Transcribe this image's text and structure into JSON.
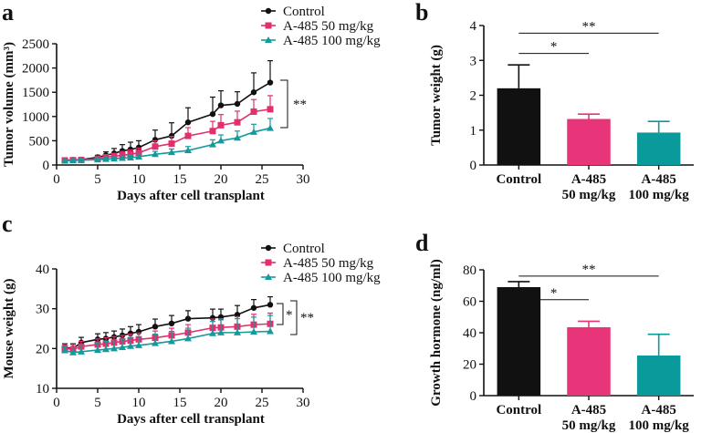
{
  "chart_data": [
    {
      "panel": "a",
      "type": "line",
      "title": "",
      "xlabel": "Days after cell transplant",
      "ylabel": "Tumor volume (mm³)",
      "xlim": [
        0,
        30
      ],
      "ylim": [
        0,
        2500
      ],
      "xticks": [
        0,
        5,
        10,
        15,
        20,
        25,
        30
      ],
      "yticks": [
        0,
        500,
        1000,
        1500,
        2000,
        2500
      ],
      "legend_position": "top-right",
      "series": [
        {
          "name": "Control",
          "color": "#111111",
          "marker": "circle",
          "x": [
            1,
            2,
            3,
            5,
            6,
            7,
            8,
            9,
            10,
            12,
            14,
            16,
            19,
            20,
            22,
            24,
            26
          ],
          "y": [
            100,
            105,
            110,
            160,
            200,
            240,
            290,
            320,
            360,
            520,
            600,
            880,
            1050,
            1230,
            1260,
            1500,
            1700
          ],
          "err": [
            20,
            20,
            25,
            40,
            70,
            100,
            130,
            150,
            140,
            200,
            270,
            300,
            350,
            300,
            250,
            400,
            450
          ]
        },
        {
          "name": "A-485 50 mg/kg",
          "color": "#e0306e",
          "marker": "square",
          "x": [
            1,
            2,
            3,
            5,
            6,
            7,
            8,
            9,
            10,
            12,
            14,
            16,
            19,
            20,
            22,
            24,
            26
          ],
          "y": [
            95,
            100,
            105,
            130,
            160,
            180,
            200,
            220,
            250,
            380,
            440,
            600,
            700,
            820,
            880,
            1100,
            1150
          ],
          "err": [
            15,
            15,
            20,
            30,
            50,
            60,
            80,
            90,
            100,
            120,
            150,
            170,
            200,
            220,
            230,
            250,
            280
          ]
        },
        {
          "name": "A-485 100 mg/kg",
          "color": "#159a9c",
          "marker": "triangle",
          "x": [
            1,
            2,
            3,
            5,
            6,
            7,
            8,
            9,
            10,
            12,
            14,
            16,
            19,
            20,
            22,
            24,
            26
          ],
          "y": [
            90,
            95,
            100,
            110,
            120,
            130,
            140,
            150,
            170,
            220,
            260,
            300,
            420,
            500,
            560,
            680,
            760
          ],
          "err": [
            15,
            15,
            20,
            20,
            30,
            35,
            40,
            45,
            50,
            60,
            70,
            80,
            100,
            120,
            140,
            160,
            200
          ]
        }
      ],
      "significance": [
        {
          "between": "Control vs A-485 100 mg/kg",
          "label": "**"
        }
      ]
    },
    {
      "panel": "b",
      "type": "bar",
      "title": "",
      "xlabel": "",
      "ylabel": "Tumor weight (g)",
      "ylim": [
        0,
        4
      ],
      "yticks": [
        0,
        1,
        2,
        3,
        4
      ],
      "categories": [
        [
          "Control"
        ],
        [
          "A-485",
          "50 mg/kg"
        ],
        [
          "A-485",
          "100 mg/kg"
        ]
      ],
      "values": [
        2.2,
        1.32,
        0.93
      ],
      "errors": [
        0.67,
        0.14,
        0.32
      ],
      "colors": [
        "#111111",
        "#e8357a",
        "#0a9a9c"
      ],
      "significance": [
        {
          "from": 0,
          "to": 1,
          "label": "*",
          "level": 3.2
        },
        {
          "from": 0,
          "to": 2,
          "label": "**",
          "level": 3.78
        }
      ]
    },
    {
      "panel": "c",
      "type": "line",
      "title": "",
      "xlabel": "Days after cell transplant",
      "ylabel": "Mouse weight (g)",
      "xlim": [
        0,
        30
      ],
      "ylim": [
        10,
        40
      ],
      "xticks": [
        0,
        5,
        10,
        15,
        20,
        25,
        30
      ],
      "yticks": [
        10,
        20,
        30,
        40
      ],
      "legend_position": "top-right",
      "series": [
        {
          "name": "Control",
          "color": "#111111",
          "marker": "circle",
          "x": [
            1,
            2,
            3,
            5,
            6,
            7,
            8,
            9,
            10,
            12,
            14,
            16,
            19,
            20,
            22,
            24,
            26
          ],
          "y": [
            20.2,
            20.0,
            21.5,
            22.3,
            22.5,
            22.9,
            23.3,
            23.8,
            24.2,
            25.5,
            26.3,
            27.5,
            27.7,
            27.9,
            28.5,
            30.2,
            31.0
          ],
          "err": [
            1.0,
            1.2,
            1.3,
            1.4,
            1.5,
            1.5,
            1.6,
            1.7,
            1.8,
            1.9,
            2.0,
            2.0,
            2.2,
            2.0,
            2.3,
            2.1,
            2.0
          ]
        },
        {
          "name": "A-485 50 mg/kg",
          "color": "#e0306e",
          "marker": "square",
          "x": [
            1,
            2,
            3,
            5,
            6,
            7,
            8,
            9,
            10,
            12,
            14,
            16,
            19,
            20,
            22,
            24,
            26
          ],
          "y": [
            20.0,
            19.8,
            20.5,
            21.0,
            21.2,
            21.5,
            21.8,
            22.0,
            22.3,
            22.7,
            23.3,
            24.0,
            25.2,
            25.3,
            25.5,
            26.0,
            26.2
          ],
          "err": [
            1.0,
            1.2,
            1.3,
            1.4,
            1.5,
            1.5,
            1.5,
            1.6,
            1.6,
            1.7,
            1.8,
            2.0,
            2.2,
            2.2,
            2.5,
            2.6,
            2.7
          ]
        },
        {
          "name": "A-485 100 mg/kg",
          "color": "#159a9c",
          "marker": "triangle",
          "x": [
            1,
            2,
            3,
            5,
            6,
            7,
            8,
            9,
            10,
            12,
            14,
            16,
            19,
            20,
            22,
            24,
            26
          ],
          "y": [
            19.5,
            19.0,
            19.2,
            19.6,
            19.8,
            20.0,
            20.3,
            20.6,
            20.8,
            21.3,
            21.8,
            22.5,
            23.8,
            24.0,
            24.0,
            24.2,
            24.3
          ],
          "err": [
            1.0,
            1.2,
            1.5,
            1.8,
            2.0,
            2.0,
            2.1,
            2.2,
            2.2,
            2.3,
            2.5,
            2.6,
            3.0,
            3.2,
            3.5,
            3.7,
            4.0
          ]
        }
      ],
      "significance": [
        {
          "between": "Control vs A-485 50 mg/kg",
          "label": "*"
        },
        {
          "between": "Control vs A-485 100 mg/kg",
          "label": "**"
        }
      ]
    },
    {
      "panel": "d",
      "type": "bar",
      "title": "",
      "xlabel": "",
      "ylabel": "Growth hormone (ng/ml)",
      "ylim": [
        0,
        80
      ],
      "yticks": [
        0,
        20,
        40,
        60,
        80
      ],
      "categories": [
        [
          "Control"
        ],
        [
          "A-485",
          "50 mg/kg"
        ],
        [
          "A-485",
          "100 mg/kg"
        ]
      ],
      "values": [
        69,
        43.5,
        25.5
      ],
      "errors": [
        3.5,
        3.8,
        13.5
      ],
      "colors": [
        "#111111",
        "#e8357a",
        "#0a9a9c"
      ],
      "significance": [
        {
          "from": 0,
          "to": 1,
          "label": "*",
          "level": 61
        },
        {
          "from": 0,
          "to": 2,
          "label": "**",
          "level": 76
        }
      ]
    }
  ]
}
